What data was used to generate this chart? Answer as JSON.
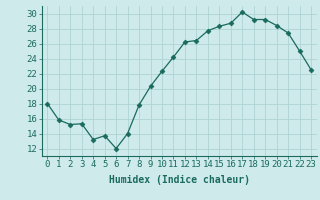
{
  "x": [
    0,
    1,
    2,
    3,
    4,
    5,
    6,
    7,
    8,
    9,
    10,
    11,
    12,
    13,
    14,
    15,
    16,
    17,
    18,
    19,
    20,
    21,
    22,
    23
  ],
  "y": [
    18,
    15.8,
    15.2,
    15.3,
    13.2,
    13.7,
    12.0,
    14.0,
    17.8,
    20.3,
    22.3,
    24.2,
    26.2,
    26.4,
    27.7,
    28.3,
    28.7,
    30.2,
    29.2,
    29.2,
    28.4,
    27.4,
    25.0,
    22.5
  ],
  "line_color": "#1a6b5e",
  "marker": "D",
  "marker_size": 2.5,
  "bg_color": "#ceeaea",
  "grid_color": "#aed4d4",
  "xlabel": "Humidex (Indice chaleur)",
  "xlim": [
    -0.5,
    23.5
  ],
  "ylim": [
    11,
    31
  ],
  "yticks": [
    12,
    14,
    16,
    18,
    20,
    22,
    24,
    26,
    28,
    30
  ],
  "xticks": [
    0,
    1,
    2,
    3,
    4,
    5,
    6,
    7,
    8,
    9,
    10,
    11,
    12,
    13,
    14,
    15,
    16,
    17,
    18,
    19,
    20,
    21,
    22,
    23
  ],
  "tick_color": "#1a6b5e",
  "label_fontsize": 7,
  "tick_fontsize": 6.5
}
